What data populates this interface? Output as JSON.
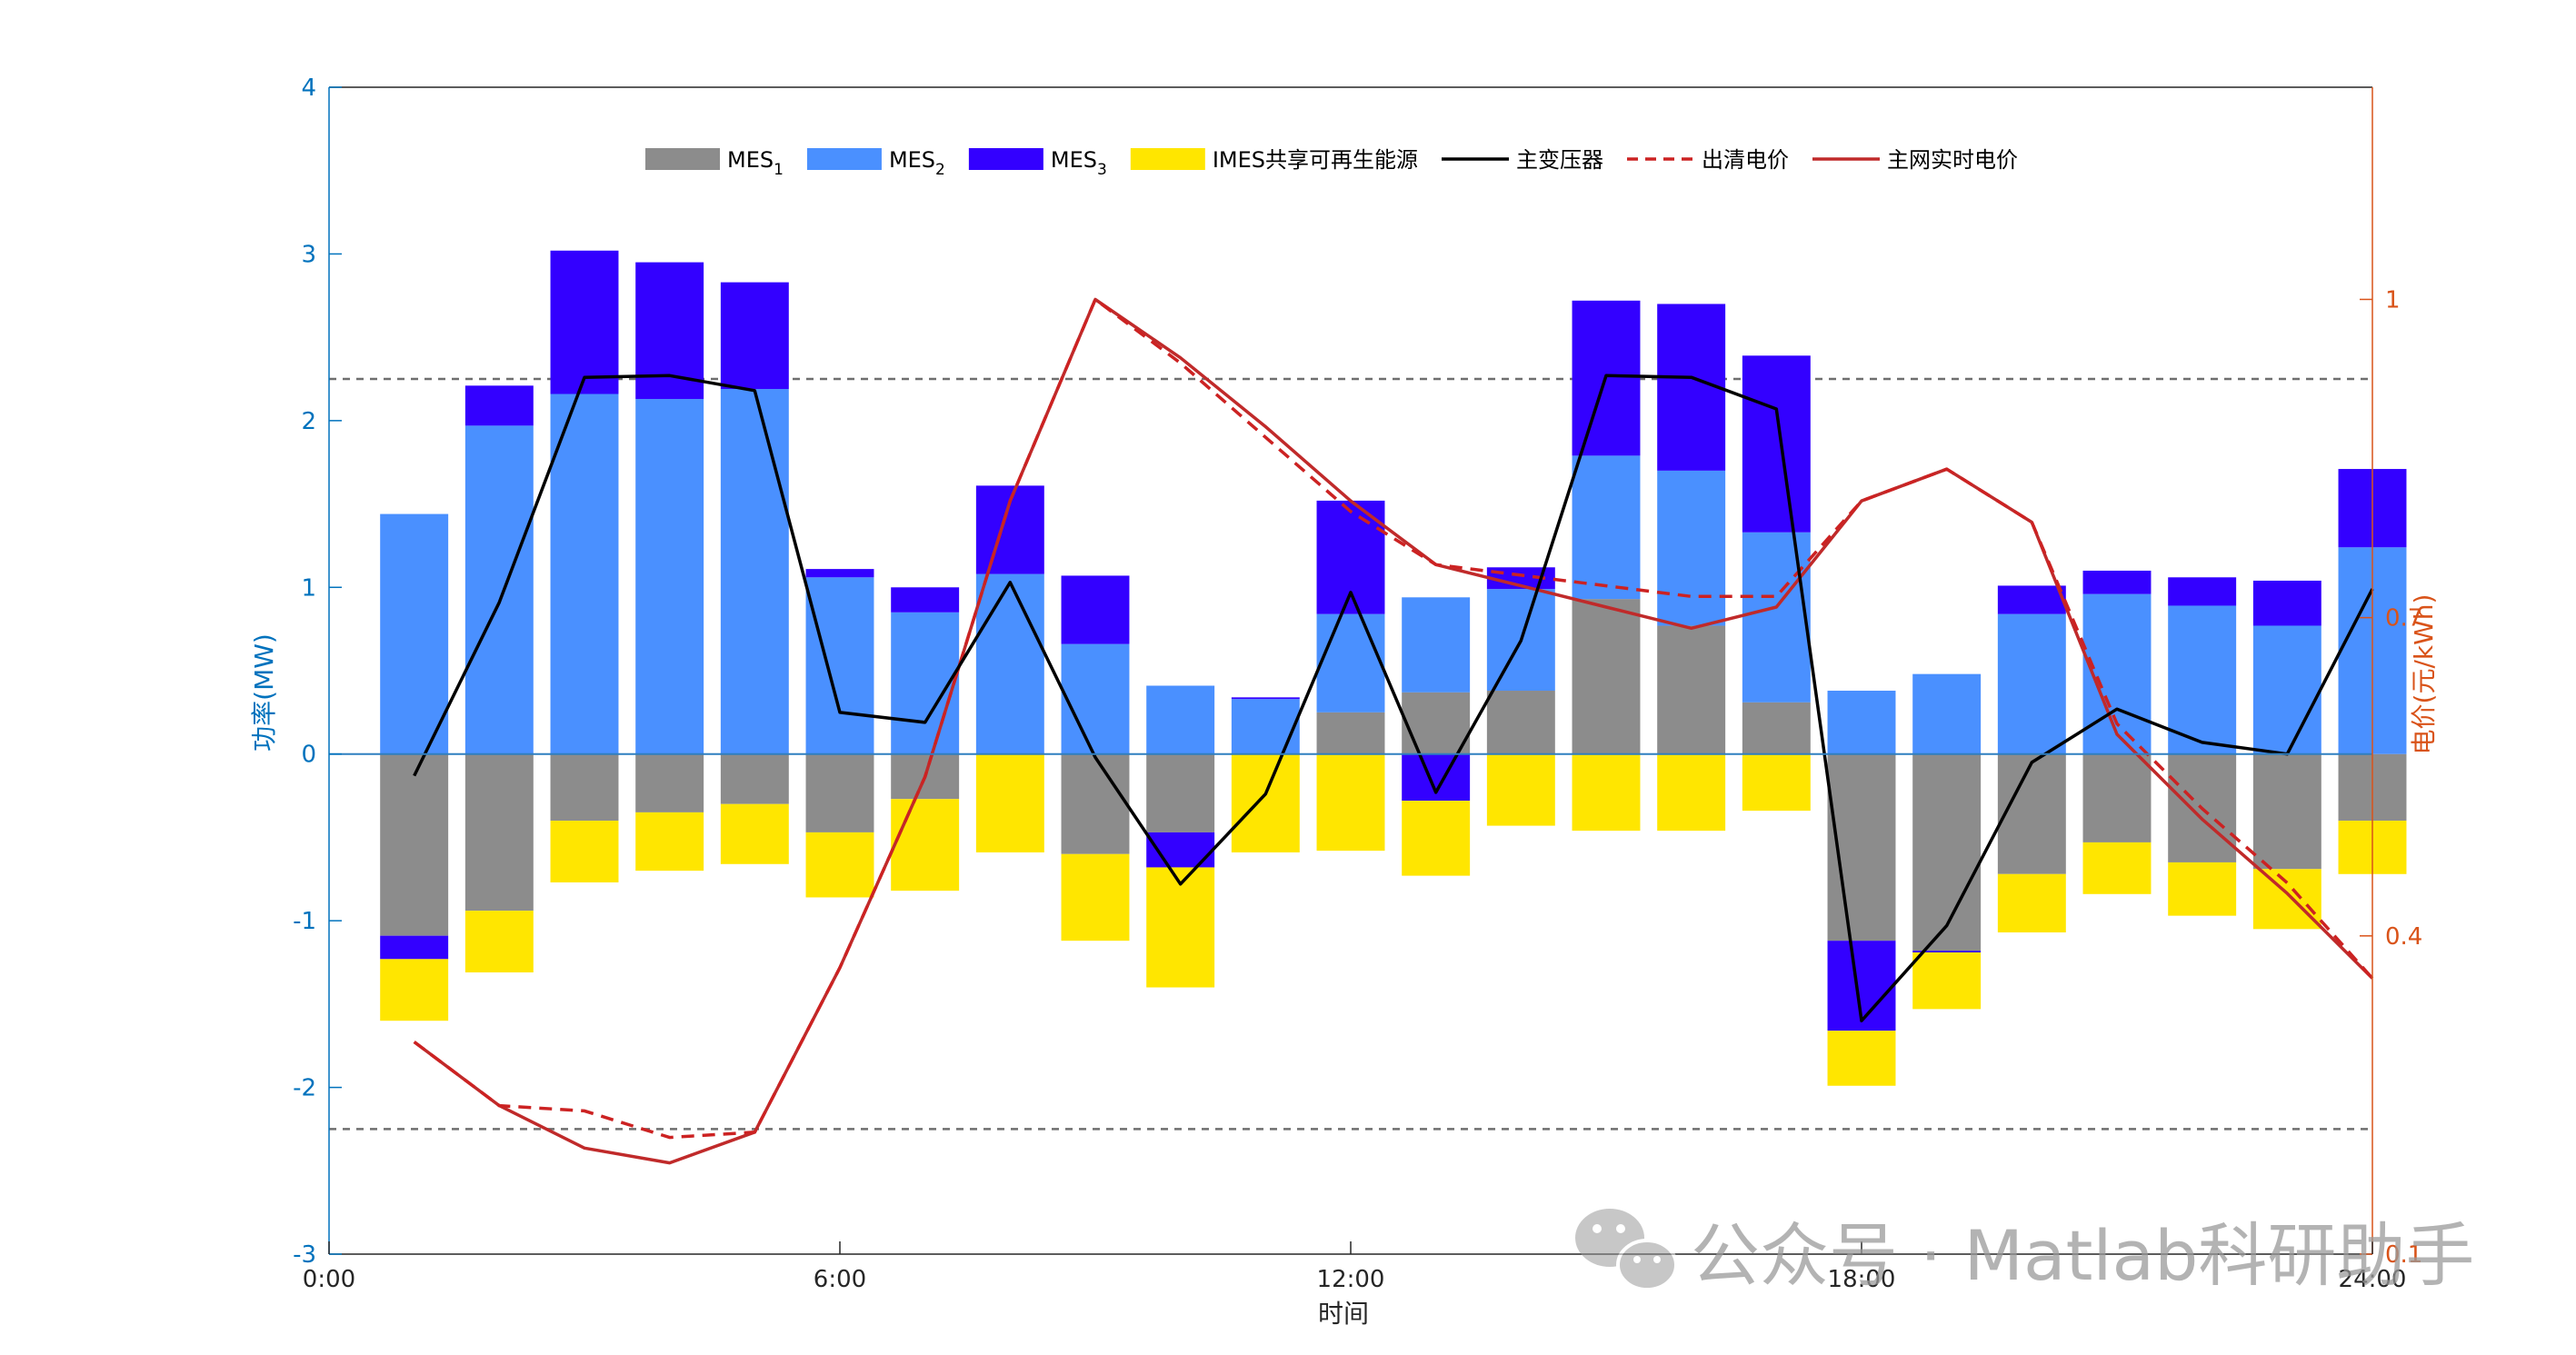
{
  "chart_data": {
    "type": "bar",
    "stacked": true,
    "xlabel": "时间",
    "ylabel_left": "功率(MW)",
    "ylabel_right": "电价(元/kWh)",
    "ylim_left": [
      -3,
      4
    ],
    "ylim_right": [
      0.1,
      1.2
    ],
    "xlim": [
      0,
      24
    ],
    "x_ticks": [
      0,
      6,
      12,
      18,
      24
    ],
    "x_tick_labels": [
      "0:00",
      "6:00",
      "12:00",
      "18:00",
      "24:00"
    ],
    "y_ticks_left": [
      -3,
      -2,
      -1,
      0,
      1,
      2,
      3,
      4
    ],
    "y_ticks_right": [
      0.1,
      0.4,
      0.7,
      1
    ],
    "y_tick_labels_right": [
      "0.1",
      "0.4",
      "0.7",
      "1"
    ],
    "hours": [
      1,
      2,
      3,
      4,
      5,
      6,
      7,
      8,
      9,
      10,
      11,
      12,
      13,
      14,
      15,
      16,
      17,
      18,
      19,
      20,
      21,
      22,
      23,
      24
    ],
    "reference_lines": [
      2.25,
      -2.25
    ],
    "legend_position": "top",
    "legend": [
      {
        "key": "mes1",
        "label": "MES",
        "sub": "1",
        "type": "bar",
        "color": "#8c8c8c"
      },
      {
        "key": "mes2",
        "label": "MES",
        "sub": "2",
        "type": "bar",
        "color": "#4a90ff"
      },
      {
        "key": "mes3",
        "label": "MES",
        "sub": "3",
        "type": "bar",
        "color": "#3300ff"
      },
      {
        "key": "renew",
        "label": "IMES共享可再生能源",
        "sub": "",
        "type": "bar",
        "color": "#ffe600"
      },
      {
        "key": "transformer",
        "label": "主变压器",
        "sub": "",
        "type": "line",
        "color": "#000000"
      },
      {
        "key": "clearing",
        "label": "出清电价",
        "sub": "",
        "type": "dash",
        "color": "#cc2222"
      },
      {
        "key": "grid",
        "label": "主网实时电价",
        "sub": "",
        "type": "line",
        "color": "#c02a2a"
      }
    ],
    "series": {
      "mes1": [
        -1.09,
        -0.94,
        -0.4,
        -0.35,
        -0.3,
        -0.47,
        -0.27,
        0.0,
        -0.6,
        -0.47,
        0.0,
        0.25,
        0.37,
        0.38,
        0.93,
        0.77,
        0.31,
        -1.12,
        -1.18,
        -0.72,
        -0.53,
        -0.65,
        -0.69,
        -0.4
      ],
      "mes2": [
        1.44,
        1.97,
        2.16,
        2.13,
        2.19,
        1.06,
        0.85,
        1.08,
        0.66,
        0.41,
        0.33,
        0.59,
        0.57,
        0.61,
        0.86,
        0.93,
        1.02,
        0.38,
        0.48,
        0.84,
        0.96,
        0.89,
        0.77,
        1.24
      ],
      "mes3": [
        -0.14,
        0.24,
        0.86,
        0.82,
        0.64,
        0.05,
        0.15,
        0.53,
        0.41,
        -0.21,
        0.01,
        0.68,
        -0.28,
        0.13,
        0.93,
        1.0,
        1.06,
        -0.54,
        -0.01,
        0.17,
        0.14,
        0.17,
        0.27,
        0.47
      ],
      "renew": [
        -0.37,
        -0.37,
        -0.37,
        -0.35,
        -0.36,
        -0.39,
        -0.55,
        -0.59,
        -0.52,
        -0.72,
        -0.59,
        -0.58,
        -0.45,
        -0.43,
        -0.46,
        -0.46,
        -0.34,
        -0.33,
        -0.34,
        -0.35,
        -0.31,
        -0.32,
        -0.36,
        -0.32
      ],
      "transformer": [
        -0.13,
        0.91,
        2.26,
        2.27,
        2.18,
        0.25,
        0.19,
        1.03,
        -0.02,
        -0.78,
        -0.24,
        0.97,
        -0.23,
        0.68,
        2.27,
        2.26,
        2.07,
        -1.6,
        -1.03,
        -0.05,
        0.27,
        0.07,
        0.0,
        0.99
      ],
      "clearing": [
        0.3,
        0.24,
        0.235,
        0.21,
        0.215,
        0.37,
        0.55,
        0.81,
        1.0,
        0.94,
        0.87,
        0.8,
        0.75,
        0.74,
        0.73,
        0.72,
        0.72,
        0.81,
        0.84,
        0.79,
        0.6,
        0.52,
        0.45,
        0.36
      ],
      "grid": [
        0.3,
        0.24,
        0.2,
        0.186,
        0.215,
        0.37,
        0.55,
        0.81,
        1.0,
        0.945,
        0.88,
        0.81,
        0.75,
        0.73,
        0.71,
        0.69,
        0.71,
        0.81,
        0.84,
        0.79,
        0.59,
        0.51,
        0.44,
        0.36
      ]
    }
  },
  "watermark": {
    "text": "公众号 · Matlab科研助手",
    "icon": "wechat-icon"
  }
}
